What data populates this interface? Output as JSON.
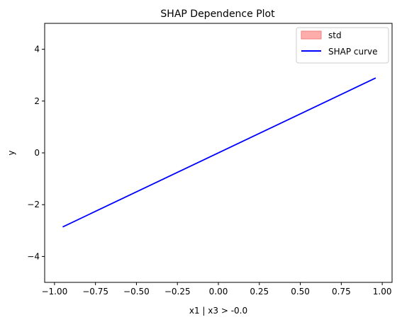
{
  "chart_data": {
    "type": "line",
    "title": "SHAP Dependence Plot",
    "xlabel": "x1 | x3  > -0.0",
    "ylabel": "y",
    "xlim": [
      -1.06,
      1.06
    ],
    "ylim": [
      -5,
      5
    ],
    "xticks": [
      -1.0,
      -0.75,
      -0.5,
      -0.25,
      0.0,
      0.25,
      0.5,
      0.75,
      1.0
    ],
    "xtick_labels": [
      "−1.00",
      "−0.75",
      "−0.50",
      "−0.25",
      "0.00",
      "0.25",
      "0.50",
      "0.75",
      "1.00"
    ],
    "yticks": [
      -4,
      -2,
      0,
      2,
      4
    ],
    "ytick_labels": [
      "−4",
      "−2",
      "0",
      "2",
      "4"
    ],
    "grid": false,
    "legend_position": "top-right",
    "series": [
      {
        "name": "std",
        "kind": "band",
        "color": "#ff9896",
        "edge_color": "#f08080",
        "x": [
          -0.95,
          0.96
        ],
        "y_low": [
          -2.86,
          2.89
        ],
        "y_high": [
          -2.86,
          2.89
        ]
      },
      {
        "name": "SHAP curve",
        "kind": "line",
        "color": "#0000ff",
        "x": [
          -0.95,
          0.96
        ],
        "y": [
          -2.86,
          2.89
        ]
      }
    ]
  }
}
